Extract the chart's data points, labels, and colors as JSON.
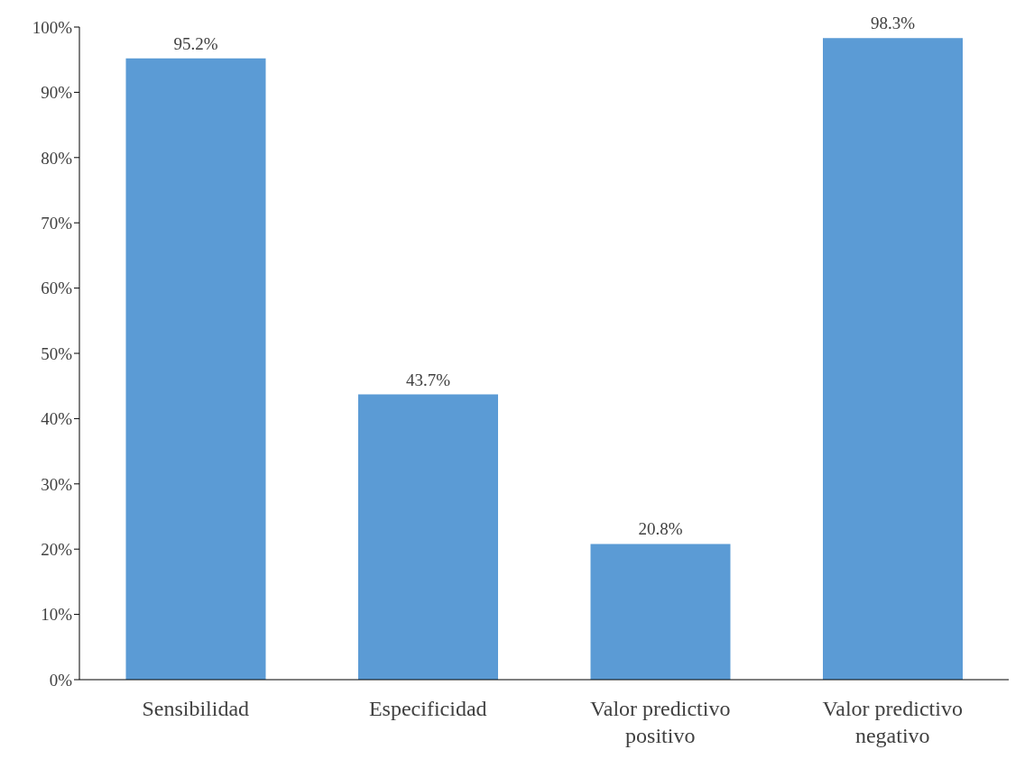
{
  "chart_data": {
    "type": "bar",
    "categories": [
      "Sensibilidad",
      "Especificidad",
      "Valor predictivo positivo",
      "Valor predictivo negativo"
    ],
    "values": [
      95.2,
      43.7,
      20.8,
      98.3
    ],
    "value_labels": [
      "95.2%",
      "43.7%",
      "20.8%",
      "98.3%"
    ],
    "color": "#5b9bd5",
    "ylim": [
      0,
      100
    ],
    "yticks": [
      {
        "value": 0,
        "label": "0%"
      },
      {
        "value": 10,
        "label": "10%"
      },
      {
        "value": 20,
        "label": "20%"
      },
      {
        "value": 30,
        "label": "30%"
      },
      {
        "value": 40,
        "label": "40%"
      },
      {
        "value": 50,
        "label": "50%"
      },
      {
        "value": 60,
        "label": "60%"
      },
      {
        "value": 70,
        "label": "70%"
      },
      {
        "value": 80,
        "label": "80%"
      },
      {
        "value": 90,
        "label": "90%"
      },
      {
        "value": 100,
        "label": "100%"
      }
    ],
    "grid": false,
    "legend": false
  }
}
